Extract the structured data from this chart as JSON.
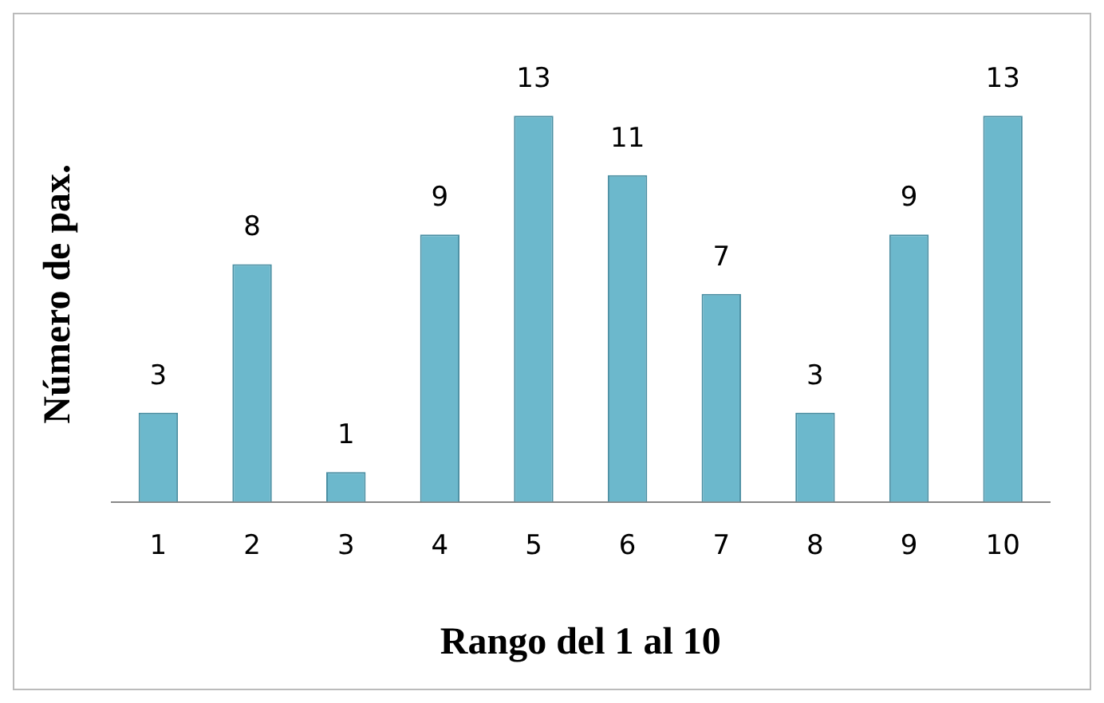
{
  "chart_data": {
    "type": "bar",
    "xlabel": "Rango del 1 al 10",
    "ylabel": "Número de pax.",
    "categories": [
      "1",
      "2",
      "3",
      "4",
      "5",
      "6",
      "7",
      "8",
      "9",
      "10"
    ],
    "values": [
      3,
      8,
      1,
      9,
      13,
      11,
      7,
      3,
      9,
      13
    ],
    "color": "#6cb8cc",
    "data_labels": true,
    "grid": false,
    "legend": false
  }
}
